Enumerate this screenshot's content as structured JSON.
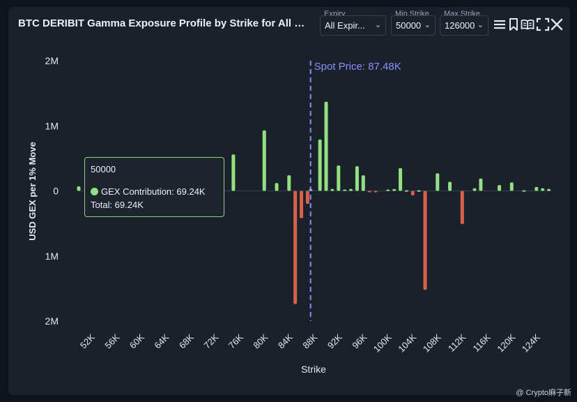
{
  "header": {
    "title": "BTC DERIBIT Gamma Exposure Profile by Strike for All Expiries",
    "expiry": {
      "label": "Expiry",
      "value": "All Expir..."
    },
    "min_strike": {
      "label": "Min Strike",
      "value": "50000"
    },
    "max_strike": {
      "label": "Max Strike",
      "value": "126000"
    },
    "icons": [
      "menu-icon",
      "bookmark-icon",
      "book-icon",
      "fullscreen-icon",
      "close-icon"
    ]
  },
  "tooltip": {
    "strike": "50000",
    "series_label": "GEX Contribution: 69.24K",
    "total_label": "Total: 69.24K"
  },
  "watermark": "@ Crypto麻子新",
  "colors": {
    "positive": "#92e07f",
    "negative": "#d9604a",
    "spot": "#8a8fff",
    "tooltip_border": "#8fd67a"
  },
  "chart_data": {
    "type": "bar",
    "title": "BTC DERIBIT Gamma Exposure Profile by Strike for All Expiries",
    "xlabel": "Strike",
    "ylabel": "USD GEX per 1% Move",
    "ylim": [
      -2000000,
      2000000
    ],
    "xlim": [
      50000,
      126500
    ],
    "y_ticks": [
      {
        "value": 2000000,
        "label": "2M"
      },
      {
        "value": 1000000,
        "label": "1M"
      },
      {
        "value": 0,
        "label": "0"
      },
      {
        "value": -1000000,
        "label": "1M"
      },
      {
        "value": -2000000,
        "label": "2M"
      }
    ],
    "x_ticks": [
      52000,
      56000,
      60000,
      64000,
      68000,
      72000,
      76000,
      80000,
      84000,
      88000,
      92000,
      96000,
      100000,
      104000,
      108000,
      112000,
      116000,
      120000,
      124000
    ],
    "x_tick_labels": [
      "52K",
      "56K",
      "60K",
      "64K",
      "68K",
      "72K",
      "76K",
      "80K",
      "84K",
      "88K",
      "92K",
      "96K",
      "100K",
      "104K",
      "108K",
      "112K",
      "116K",
      "120K",
      "124K"
    ],
    "spot_price": 87480,
    "spot_label": "Spot Price: 87.48K",
    "series": [
      {
        "name": "GEX Contribution",
        "strikes": [
          50000,
          75000,
          80000,
          82000,
          84000,
          85000,
          86000,
          87000,
          87500,
          89000,
          90000,
          91000,
          92000,
          93000,
          94000,
          95000,
          96000,
          97000,
          98000,
          100000,
          101000,
          102000,
          103000,
          104000,
          105000,
          106000,
          108000,
          110000,
          112000,
          114000,
          115000,
          118000,
          120000,
          122000,
          124000,
          125000,
          126000
        ],
        "values": [
          69240,
          560000,
          930000,
          120000,
          240000,
          -1740000,
          -420000,
          -200000,
          30000,
          790000,
          1370000,
          30000,
          390000,
          20000,
          30000,
          380000,
          240000,
          -20000,
          -20000,
          20000,
          30000,
          350000,
          10000,
          -70000,
          10000,
          -1520000,
          270000,
          140000,
          -510000,
          40000,
          190000,
          90000,
          130000,
          10000,
          60000,
          40000,
          30000
        ]
      }
    ]
  }
}
